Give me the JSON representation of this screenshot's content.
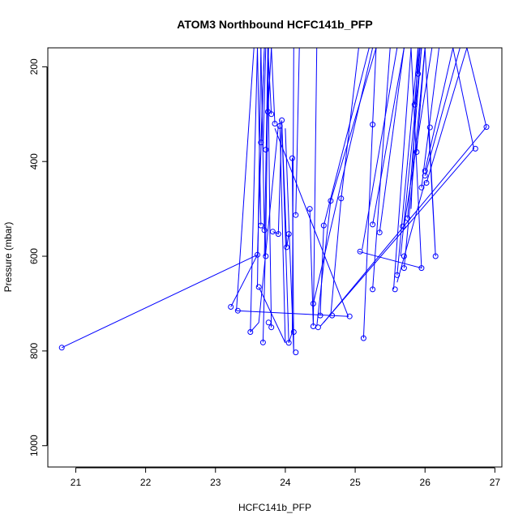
{
  "chart_data": {
    "type": "line",
    "title": "ATOM3 Northbound HCFC141b_PFP",
    "xlabel": "HCFC141b_PFP",
    "ylabel": "Pressure (mbar)",
    "xlim": [
      20.6,
      27.1
    ],
    "ylim": [
      1045,
      160
    ],
    "y_reversed": true,
    "x_ticks": [
      21,
      22,
      23,
      24,
      25,
      26,
      27
    ],
    "y_ticks": [
      200,
      400,
      600,
      800,
      1000
    ],
    "grid": false,
    "series_color": "#0000ff",
    "series": [
      {
        "x": [
          23.6,
          23.65
        ],
        "y": [
          665,
          160
        ]
      },
      {
        "x": [
          23.7,
          23.75
        ],
        "y": [
          600,
          160
        ]
      },
      {
        "x": [
          23.3,
          23.55
        ],
        "y": [
          715,
          160
        ]
      },
      {
        "x": [
          23.5,
          23.6
        ],
        "y": [
          760,
          160
        ]
      },
      {
        "x": [
          23.65,
          23.7
        ],
        "y": [
          360,
          160
        ]
      },
      {
        "x": [
          23.68,
          23.72
        ],
        "y": [
          375,
          160
        ]
      },
      {
        "x": [
          23.75,
          23.8
        ],
        "y": [
          295,
          160
        ]
      },
      {
        "x": [
          23.8,
          23.75
        ],
        "y": [
          300,
          160
        ]
      },
      {
        "x": [
          23.65,
          23.6
        ],
        "y": [
          535,
          160
        ]
      },
      {
        "x": [
          23.7,
          23.65
        ],
        "y": [
          545,
          160
        ]
      },
      {
        "x": [
          23.85,
          23.8
        ],
        "y": [
          320,
          160
        ]
      },
      {
        "x": [
          23.68,
          23.72,
          23.76
        ],
        "y": [
          782,
          555,
          160
        ]
      },
      {
        "x": [
          23.8,
          23.78,
          23.75
        ],
        "y": [
          750,
          560,
          160
        ]
      },
      {
        "x": [
          20.8,
          23.6
        ],
        "y": [
          793,
          597
        ]
      },
      {
        "x": [
          23.22,
          23.6,
          23.7
        ],
        "y": [
          707,
          597,
          160
        ]
      },
      {
        "x": [
          23.3,
          24.9,
          23.85
        ],
        "y": [
          715,
          727,
          330
        ]
      },
      {
        "x": [
          23.5,
          23.62,
          23.9
        ],
        "y": [
          760,
          740,
          325
        ]
      },
      {
        "x": [
          23.62,
          24.0,
          23.92
        ],
        "y": [
          665,
          783,
          310
        ]
      },
      {
        "x": [
          23.82,
          23.9,
          23.95
        ],
        "y": [
          548,
          553,
          313
        ]
      },
      {
        "x": [
          23.95,
          24.05,
          24.1
        ],
        "y": [
          320,
          783,
          760
        ]
      },
      {
        "x": [
          24.05,
          24.02,
          23.95
        ],
        "y": [
          553,
          581,
          320
        ]
      },
      {
        "x": [
          24.1,
          24.12,
          24.0
        ],
        "y": [
          393,
          803,
          330
        ]
      },
      {
        "x": [
          24.15,
          24.2
        ],
        "y": [
          513,
          160
        ]
      },
      {
        "x": [
          24.1,
          24.12
        ],
        "y": [
          760,
          160
        ]
      },
      {
        "x": [
          24.35,
          24.4,
          24.45
        ],
        "y": [
          500,
          747,
          160
        ]
      },
      {
        "x": [
          24.4,
          25.25
        ],
        "y": [
          700,
          160
        ]
      },
      {
        "x": [
          24.45,
          24.65
        ],
        "y": [
          748,
          483
        ]
      },
      {
        "x": [
          24.5,
          24.55,
          25.2
        ],
        "y": [
          725,
          535,
          160
        ]
      },
      {
        "x": [
          24.65,
          24.8,
          25.05
        ],
        "y": [
          725,
          478,
          160
        ]
      },
      {
        "x": [
          24.65,
          25.3
        ],
        "y": [
          483,
          160
        ]
      },
      {
        "x": [
          25.05,
          25.95,
          25.8
        ],
        "y": [
          590,
          625,
          160
        ]
      },
      {
        "x": [
          25.12,
          25.25,
          25.3
        ],
        "y": [
          773,
          322,
          160
        ]
      },
      {
        "x": [
          25.1,
          25.6
        ],
        "y": [
          585,
          160
        ]
      },
      {
        "x": [
          25.25,
          25.7
        ],
        "y": [
          533,
          160
        ]
      },
      {
        "x": [
          25.25,
          25.5
        ],
        "y": [
          670,
          160
        ]
      },
      {
        "x": [
          25.35,
          25.7
        ],
        "y": [
          550,
          160
        ]
      },
      {
        "x": [
          25.55,
          25.8
        ],
        "y": [
          670,
          160
        ]
      },
      {
        "x": [
          25.6,
          25.9
        ],
        "y": [
          640,
          160
        ]
      },
      {
        "x": [
          25.65,
          25.95
        ],
        "y": [
          600,
          160
        ]
      },
      {
        "x": [
          25.7,
          26.0
        ],
        "y": [
          625,
          160
        ]
      },
      {
        "x": [
          25.7,
          26.1
        ],
        "y": [
          535,
          160
        ]
      },
      {
        "x": [
          25.75,
          25.95
        ],
        "y": [
          520,
          160
        ]
      },
      {
        "x": [
          25.8,
          25.9
        ],
        "y": [
          500,
          160
        ]
      },
      {
        "x": [
          25.85,
          25.92
        ],
        "y": [
          280,
          160
        ]
      },
      {
        "x": [
          25.9,
          25.93
        ],
        "y": [
          215,
          160
        ]
      },
      {
        "x": [
          25.88,
          26.0
        ],
        "y": [
          380,
          160
        ]
      },
      {
        "x": [
          25.95,
          26.2
        ],
        "y": [
          455,
          160
        ]
      },
      {
        "x": [
          26.0,
          26.4
        ],
        "y": [
          420,
          160
        ]
      },
      {
        "x": [
          26.0,
          26.5
        ],
        "y": [
          430,
          160
        ]
      },
      {
        "x": [
          26.02,
          26.6
        ],
        "y": [
          445,
          160
        ]
      },
      {
        "x": [
          26.05,
          26.15,
          26.0
        ],
        "y": [
          328,
          600,
          160
        ]
      },
      {
        "x": [
          26.7,
          26.4
        ],
        "y": [
          373,
          160
        ]
      },
      {
        "x": [
          26.88,
          26.6
        ],
        "y": [
          327,
          160
        ]
      },
      {
        "x": [
          24.5,
          26.7
        ],
        "y": [
          748,
          373
        ]
      },
      {
        "x": [
          24.55,
          26.88
        ],
        "y": [
          740,
          327
        ]
      },
      {
        "x": [
          25.6,
          26.0
        ],
        "y": [
          655,
          443
        ]
      }
    ],
    "points": [
      {
        "x": 20.8,
        "y": 793
      },
      {
        "x": 23.22,
        "y": 707
      },
      {
        "x": 23.32,
        "y": 715
      },
      {
        "x": 23.5,
        "y": 760
      },
      {
        "x": 23.6,
        "y": 597
      },
      {
        "x": 23.62,
        "y": 665
      },
      {
        "x": 23.65,
        "y": 360
      },
      {
        "x": 23.65,
        "y": 535
      },
      {
        "x": 23.68,
        "y": 782
      },
      {
        "x": 23.7,
        "y": 545
      },
      {
        "x": 23.72,
        "y": 375
      },
      {
        "x": 23.72,
        "y": 600
      },
      {
        "x": 23.75,
        "y": 295
      },
      {
        "x": 23.76,
        "y": 740
      },
      {
        "x": 23.8,
        "y": 750
      },
      {
        "x": 23.8,
        "y": 300
      },
      {
        "x": 23.82,
        "y": 548
      },
      {
        "x": 23.85,
        "y": 320
      },
      {
        "x": 23.9,
        "y": 553
      },
      {
        "x": 23.92,
        "y": 325
      },
      {
        "x": 23.95,
        "y": 313
      },
      {
        "x": 24.02,
        "y": 581
      },
      {
        "x": 24.05,
        "y": 553
      },
      {
        "x": 24.05,
        "y": 783
      },
      {
        "x": 24.1,
        "y": 393
      },
      {
        "x": 24.12,
        "y": 760
      },
      {
        "x": 24.15,
        "y": 803
      },
      {
        "x": 24.15,
        "y": 513
      },
      {
        "x": 24.35,
        "y": 500
      },
      {
        "x": 24.4,
        "y": 700
      },
      {
        "x": 24.4,
        "y": 748
      },
      {
        "x": 24.47,
        "y": 750
      },
      {
        "x": 24.5,
        "y": 725
      },
      {
        "x": 24.55,
        "y": 535
      },
      {
        "x": 24.65,
        "y": 483
      },
      {
        "x": 24.67,
        "y": 725
      },
      {
        "x": 24.8,
        "y": 478
      },
      {
        "x": 24.92,
        "y": 727
      },
      {
        "x": 25.07,
        "y": 590
      },
      {
        "x": 25.12,
        "y": 773
      },
      {
        "x": 25.25,
        "y": 322
      },
      {
        "x": 25.25,
        "y": 533
      },
      {
        "x": 25.25,
        "y": 670
      },
      {
        "x": 25.35,
        "y": 550
      },
      {
        "x": 25.57,
        "y": 670
      },
      {
        "x": 25.6,
        "y": 640
      },
      {
        "x": 25.68,
        "y": 537
      },
      {
        "x": 25.7,
        "y": 600
      },
      {
        "x": 25.7,
        "y": 625
      },
      {
        "x": 25.75,
        "y": 520
      },
      {
        "x": 25.85,
        "y": 280
      },
      {
        "x": 25.88,
        "y": 380
      },
      {
        "x": 25.9,
        "y": 215
      },
      {
        "x": 25.95,
        "y": 455
      },
      {
        "x": 25.95,
        "y": 625
      },
      {
        "x": 26.0,
        "y": 420
      },
      {
        "x": 26.0,
        "y": 430
      },
      {
        "x": 26.02,
        "y": 445
      },
      {
        "x": 26.07,
        "y": 328
      },
      {
        "x": 26.15,
        "y": 600
      },
      {
        "x": 26.72,
        "y": 373
      },
      {
        "x": 26.88,
        "y": 327
      }
    ]
  }
}
